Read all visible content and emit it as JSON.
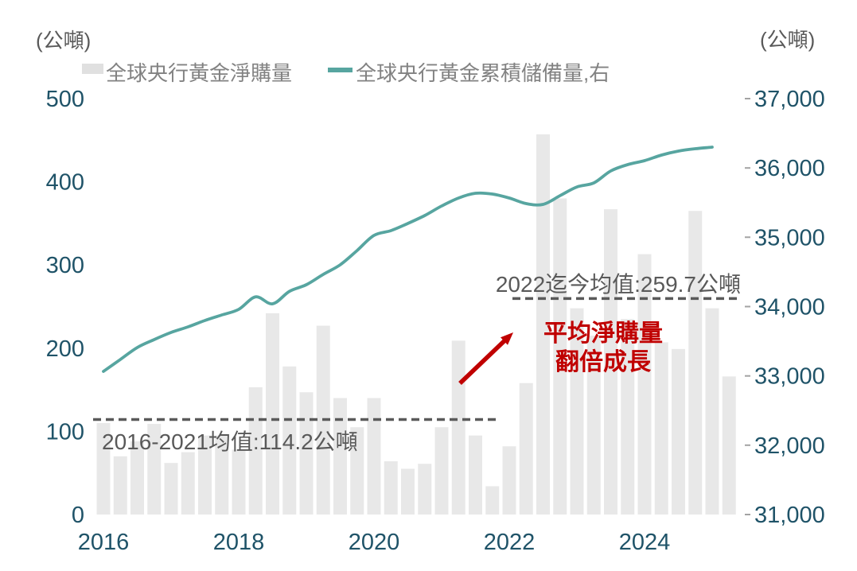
{
  "units": {
    "left": "(公噸)",
    "right": "(公噸)"
  },
  "legend": {
    "items": [
      {
        "label": "全球央行黃金淨購量",
        "type": "bar",
        "color": "#e0e0e0"
      },
      {
        "label": "全球央行黃金累積儲備量,右",
        "type": "line",
        "color": "#57a5a0"
      }
    ]
  },
  "annotations": {
    "avg_old": {
      "label": "2016-2021均值:114.2公噸",
      "value": 114.2
    },
    "avg_new": {
      "label": "2022迄今均值:259.7公噸",
      "value": 259.7
    },
    "growth": {
      "line1": "平均淨購量",
      "line2": "翻倍成長"
    }
  },
  "colors": {
    "bar": "#e8e8e8",
    "line": "#57a5a0",
    "axis_label": "#1f5368",
    "annotation_text": "#595959",
    "dash_line": "#5a5a5a",
    "highlight_red": "#c00000",
    "tick_mark": "#a3a3a3"
  },
  "chart_data": {
    "type": "bar+line",
    "title": "",
    "x_year_ticks": [
      {
        "label": "2016",
        "quarter_index": 0
      },
      {
        "label": "2018",
        "quarter_index": 8
      },
      {
        "label": "2020",
        "quarter_index": 16
      },
      {
        "label": "2022",
        "quarter_index": 24
      },
      {
        "label": "2024",
        "quarter_index": 32
      }
    ],
    "quarters": [
      "2016Q1",
      "2016Q2",
      "2016Q3",
      "2016Q4",
      "2017Q1",
      "2017Q2",
      "2017Q3",
      "2017Q4",
      "2018Q1",
      "2018Q2",
      "2018Q3",
      "2018Q4",
      "2019Q1",
      "2019Q2",
      "2019Q3",
      "2019Q4",
      "2020Q1",
      "2020Q2",
      "2020Q3",
      "2020Q4",
      "2021Q1",
      "2021Q2",
      "2021Q3",
      "2021Q4",
      "2022Q1",
      "2022Q2",
      "2022Q3",
      "2022Q4",
      "2023Q1",
      "2023Q2",
      "2023Q3",
      "2023Q4",
      "2024Q1",
      "2024Q2",
      "2024Q3",
      "2024Q4",
      "2025Q1",
      "2025Q2"
    ],
    "series": [
      {
        "name": "全球央行黃金淨購量",
        "type": "bar",
        "axis": "left",
        "values": [
          110,
          70,
          88,
          109,
          62,
          75,
          95,
          95,
          78,
          153,
          242,
          178,
          147,
          227,
          140,
          105,
          140,
          64,
          55,
          61,
          105,
          209,
          95,
          34,
          82,
          158,
          457,
          380,
          248,
          215,
          367,
          235,
          313,
          207,
          199,
          365,
          248,
          166
        ]
      },
      {
        "name": "全球央行黃金累積儲備量,右",
        "type": "line",
        "axis": "right",
        "values": [
          33065,
          33237,
          33409,
          33524,
          33627,
          33707,
          33799,
          33879,
          33960,
          34140,
          34040,
          34220,
          34315,
          34465,
          34602,
          34809,
          35027,
          35096,
          35199,
          35314,
          35451,
          35566,
          35635,
          35623,
          35566,
          35486,
          35474,
          35600,
          35726,
          35784,
          35956,
          36048,
          36105,
          36185,
          36243,
          36277,
          36300,
          null
        ]
      }
    ],
    "left_axis": {
      "min": 0,
      "max": 500,
      "ticks": [
        0,
        100,
        200,
        300,
        400,
        500
      ]
    },
    "right_axis": {
      "min": 31000,
      "max": 37000,
      "ticks": [
        31000,
        32000,
        33000,
        34000,
        35000,
        36000,
        37000
      ]
    },
    "reference_lines": [
      {
        "axis": "left",
        "value": 114.2,
        "label": "2016-2021均值:114.2公噸"
      },
      {
        "axis": "left",
        "value": 259.7,
        "label": "2022迄今均值:259.7公噸"
      }
    ],
    "grid": false,
    "legend_position": "top"
  }
}
